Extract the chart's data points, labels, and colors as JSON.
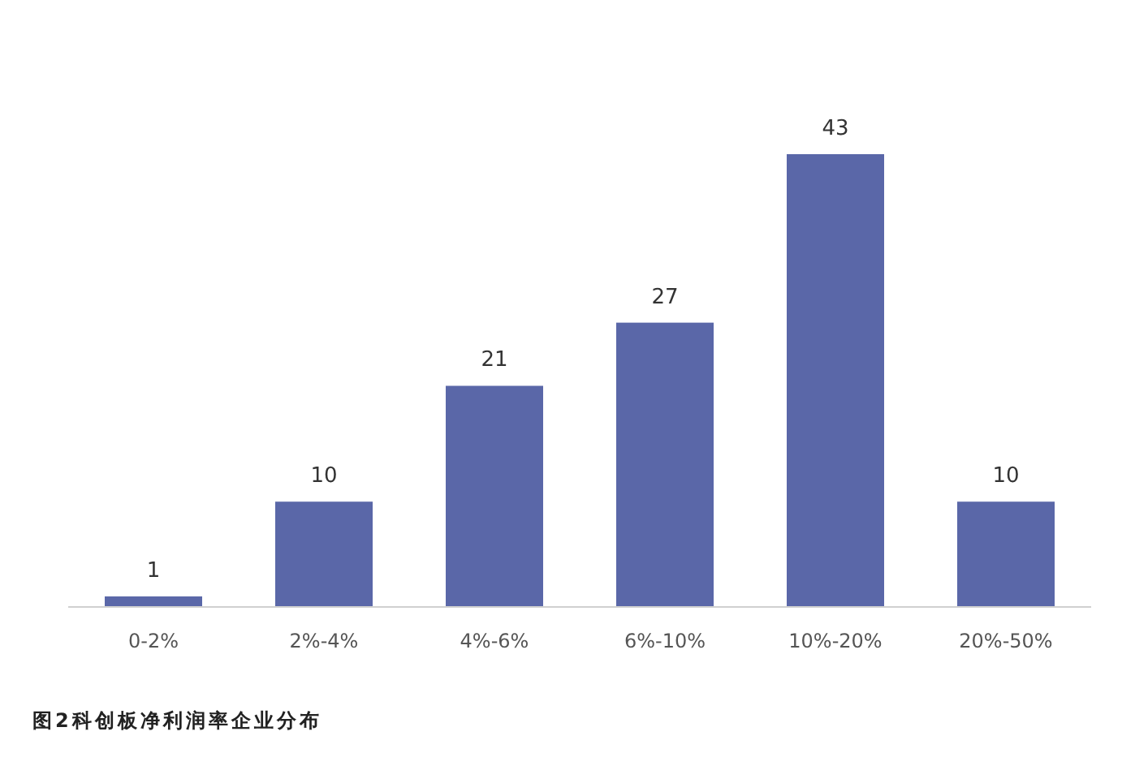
{
  "chart_data": {
    "type": "bar",
    "title": "图2科创板净利润率企业分布",
    "categories": [
      "0-2%",
      "2%-4%",
      "4%-6%",
      "6%-10%",
      "10%-20%",
      "20%-50%"
    ],
    "values": [
      1,
      10,
      21,
      27,
      43,
      10
    ],
    "color": "#5a67a8",
    "data_labels": true
  }
}
